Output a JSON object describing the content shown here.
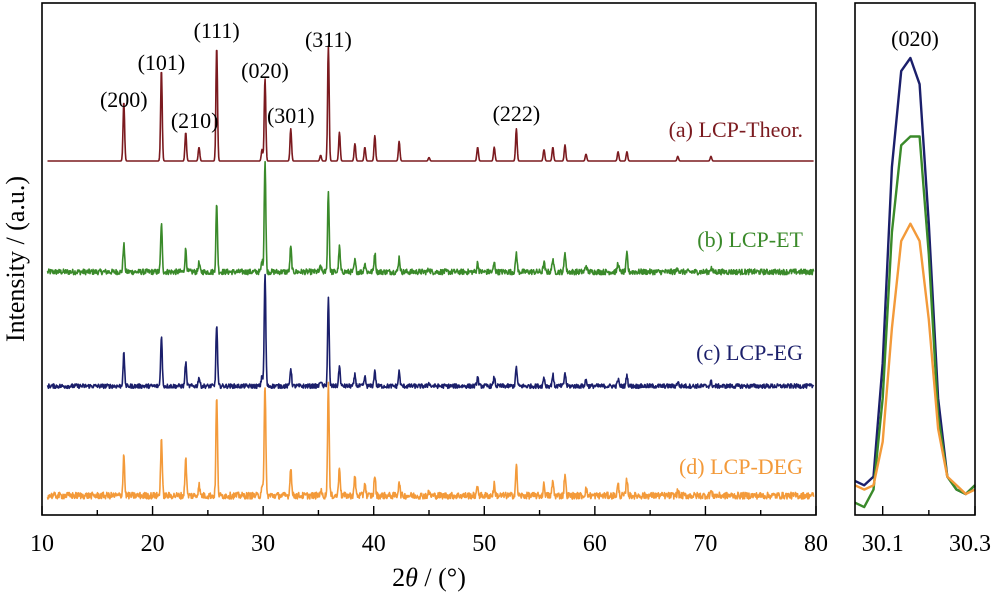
{
  "chart_data": [
    {
      "type": "line",
      "xlabel_prefix": "2",
      "xlabel_var": "θ",
      "xlabel_suffix": " / (°)",
      "ylabel": "Intensity / (a.u.)",
      "xlim": [
        10,
        80
      ],
      "x_ticks": [
        10,
        20,
        30,
        40,
        50,
        60,
        70,
        80
      ],
      "x_tick_labels": [
        "10",
        "20",
        "30",
        "40",
        "50",
        "60",
        "70",
        "80"
      ],
      "y_ticks_shown": false,
      "grid": false,
      "stacked_offset": true,
      "peak_positions": [
        17.4,
        20.8,
        23.0,
        24.2,
        25.8,
        29.9,
        30.17,
        32.5,
        35.2,
        35.9,
        36.9,
        38.3,
        39.2,
        40.1,
        42.3,
        45.0,
        49.4,
        50.9,
        52.9,
        55.4,
        56.2,
        57.3,
        59.2,
        62.1,
        62.9,
        67.5,
        70.5
      ],
      "peak_annotations": [
        {
          "label": "(200)",
          "x": 17.4
        },
        {
          "label": "(101)",
          "x": 20.8
        },
        {
          "label": "(210)",
          "x": 23.0
        },
        {
          "label": "(111)",
          "x": 25.8
        },
        {
          "label": "(020)",
          "x": 30.17
        },
        {
          "label": "(301)",
          "x": 32.5
        },
        {
          "label": "(311)",
          "x": 35.9
        },
        {
          "label": "(222)",
          "x": 52.9
        }
      ],
      "series": [
        {
          "name": "(a) LCP-Theor.",
          "color": "#7b1a1f",
          "noise": 0.0,
          "intensities": [
            0.52,
            0.8,
            0.25,
            0.12,
            1.0,
            0.1,
            0.72,
            0.28,
            0.05,
            1.0,
            0.25,
            0.15,
            0.12,
            0.22,
            0.17,
            0.03,
            0.12,
            0.12,
            0.28,
            0.1,
            0.12,
            0.14,
            0.06,
            0.08,
            0.08,
            0.04,
            0.04
          ]
        },
        {
          "name": "(b) LCP-ET",
          "color": "#3a8a2a",
          "noise": 0.025,
          "intensities": [
            0.25,
            0.43,
            0.2,
            0.08,
            0.6,
            0.1,
            1.0,
            0.22,
            0.05,
            0.72,
            0.22,
            0.1,
            0.08,
            0.17,
            0.13,
            0.03,
            0.08,
            0.08,
            0.17,
            0.08,
            0.12,
            0.18,
            0.06,
            0.08,
            0.16,
            0.04,
            0.04
          ]
        },
        {
          "name": "(c) LCP-EG",
          "color": "#1b1f6b",
          "noise": 0.02,
          "intensities": [
            0.29,
            0.45,
            0.21,
            0.08,
            0.55,
            0.1,
            1.0,
            0.16,
            0.05,
            0.78,
            0.18,
            0.1,
            0.08,
            0.14,
            0.13,
            0.03,
            0.08,
            0.08,
            0.17,
            0.08,
            0.1,
            0.12,
            0.06,
            0.06,
            0.1,
            0.04,
            0.04
          ]
        },
        {
          "name": "(d) LCP-DEG",
          "color": "#f39a3a",
          "noise": 0.03,
          "intensities": [
            0.37,
            0.52,
            0.34,
            0.1,
            0.88,
            0.1,
            1.0,
            0.26,
            0.05,
            1.0,
            0.27,
            0.17,
            0.12,
            0.18,
            0.13,
            0.03,
            0.08,
            0.1,
            0.27,
            0.1,
            0.13,
            0.2,
            0.06,
            0.1,
            0.15,
            0.04,
            0.04
          ]
        }
      ]
    },
    {
      "type": "line",
      "title": "(020)",
      "xlim": [
        30.04,
        30.3
      ],
      "x_ticks": [
        30.1,
        30.3
      ],
      "x_tick_labels": [
        "30.1",
        "30.3"
      ],
      "y_ticks_shown": false,
      "x": [
        30.04,
        30.06,
        30.08,
        30.1,
        30.12,
        30.14,
        30.16,
        30.18,
        30.2,
        30.22,
        30.24,
        30.26,
        30.28,
        30.3
      ],
      "series": [
        {
          "name": "(c) LCP-EG",
          "color": "#1b1f6b",
          "values": [
            0.03,
            0.02,
            0.04,
            0.3,
            0.75,
            0.97,
            1.0,
            0.94,
            0.62,
            0.22,
            0.04,
            0.01,
            0.0,
            0.02
          ]
        },
        {
          "name": "(b) LCP-ET",
          "color": "#3a8a2a",
          "values": [
            -0.02,
            -0.03,
            0.01,
            0.22,
            0.6,
            0.8,
            0.82,
            0.82,
            0.55,
            0.18,
            0.04,
            0.01,
            0.0,
            0.02
          ]
        },
        {
          "name": "(d) LCP-DEG",
          "color": "#f39a3a",
          "values": [
            0.02,
            0.01,
            0.02,
            0.12,
            0.38,
            0.58,
            0.62,
            0.58,
            0.4,
            0.15,
            0.04,
            0.02,
            0.0,
            0.01
          ]
        }
      ]
    }
  ]
}
